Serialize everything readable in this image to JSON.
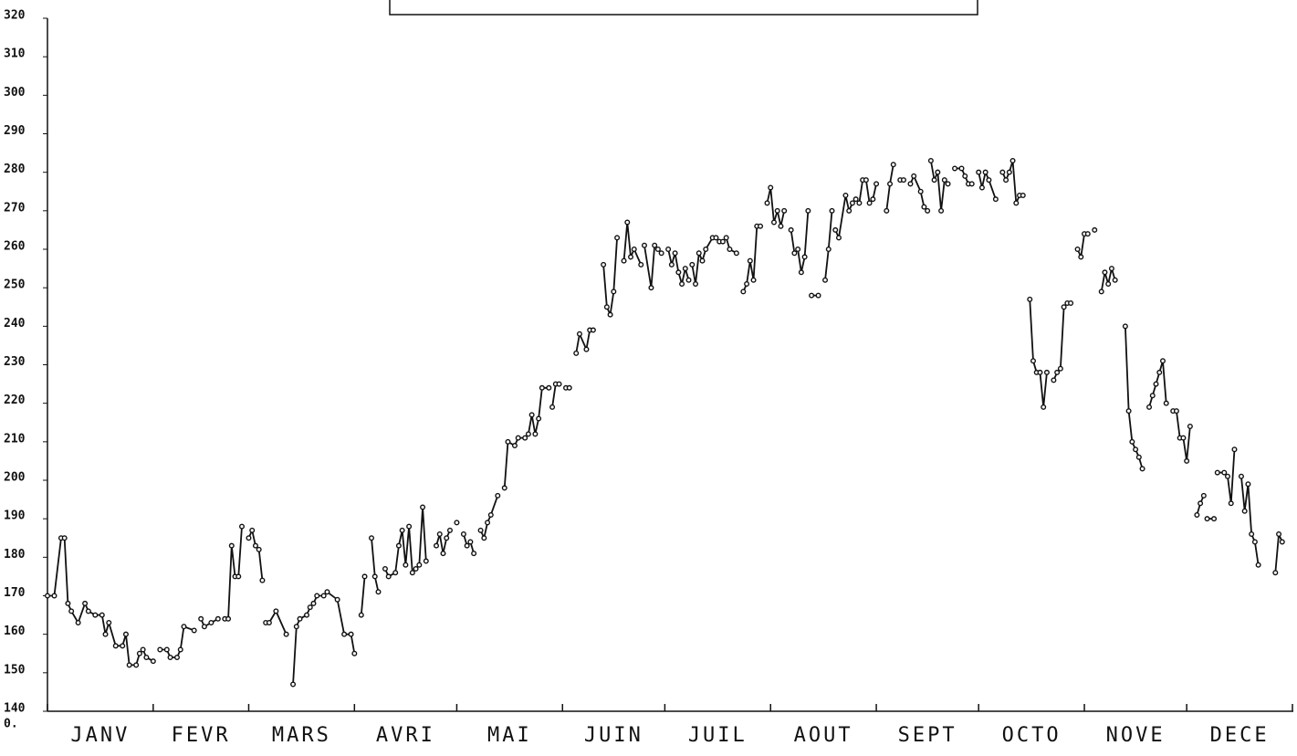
{
  "chart_data": {
    "type": "line",
    "categories": [
      "JANV",
      "FEVR",
      "MARS",
      "AVRI",
      "MAI",
      "JUIN",
      "JUIL",
      "AOUT",
      "SEPT",
      "OCTO",
      "NOVE",
      "DECE"
    ],
    "origin_label": "0.",
    "xlim": [
      0,
      365
    ],
    "xticks": [
      0,
      31,
      59,
      90,
      120,
      151,
      181,
      212,
      243,
      273,
      304,
      334,
      365
    ],
    "ylim": [
      140,
      320
    ],
    "yticks": [
      140,
      150,
      160,
      170,
      180,
      190,
      200,
      210,
      220,
      230,
      240,
      250,
      260,
      270,
      280,
      290,
      300,
      310,
      320
    ],
    "color": "#111111",
    "x": [
      0,
      2,
      4,
      5,
      6,
      7,
      9,
      11,
      12,
      14,
      16,
      17,
      18,
      20,
      22,
      23,
      24,
      26,
      27,
      28,
      29,
      31,
      null,
      33,
      35,
      36,
      38,
      39,
      40,
      43,
      null,
      45,
      46,
      48,
      50,
      null,
      52,
      53,
      54,
      55,
      56,
      57,
      null,
      59,
      60,
      61,
      62,
      63,
      null,
      64,
      65,
      67,
      70,
      null,
      72,
      73,
      74,
      76,
      77,
      null,
      78,
      79,
      81,
      82,
      85,
      87,
      89,
      90,
      null,
      92,
      93,
      null,
      95,
      96,
      97,
      null,
      99,
      100,
      102,
      103,
      104,
      105,
      106,
      107,
      108,
      109,
      110,
      111,
      null,
      114,
      115,
      116,
      117,
      118,
      null,
      120,
      null,
      122,
      123,
      124,
      125,
      null,
      127,
      128,
      129,
      130,
      132,
      null,
      134,
      135,
      137,
      138,
      140,
      141,
      142,
      143,
      144,
      145,
      147,
      null,
      148,
      149,
      150,
      null,
      152,
      153,
      null,
      155,
      156,
      158,
      159,
      160,
      null,
      163,
      164,
      165,
      166,
      167,
      null,
      169,
      170,
      171,
      172,
      174,
      null,
      175,
      177,
      178,
      179,
      180,
      null,
      182,
      183,
      184,
      185,
      186,
      187,
      188,
      null,
      189,
      190,
      191,
      192,
      193,
      195,
      196,
      null,
      197,
      198,
      199,
      200,
      202,
      null,
      204,
      205,
      206,
      207,
      208,
      209,
      null,
      211,
      212,
      213,
      214,
      215,
      216,
      null,
      218,
      219,
      220,
      221,
      222,
      223,
      null,
      224,
      226,
      null,
      228,
      229,
      230,
      null,
      231,
      232,
      234,
      235,
      236,
      237,
      null,
      238,
      239,
      240,
      241,
      242,
      243,
      null,
      246,
      247,
      248,
      null,
      250,
      251,
      null,
      253,
      254,
      256,
      257,
      258,
      null,
      259,
      260,
      261,
      262,
      263,
      264,
      null,
      266,
      268,
      269,
      270,
      271,
      null,
      273,
      274,
      275,
      276,
      278,
      null,
      280,
      281,
      282,
      283,
      284,
      285,
      286,
      null,
      288,
      289,
      290,
      291,
      292,
      293,
      null,
      295,
      296,
      297,
      298,
      299,
      300,
      null,
      302,
      303,
      304,
      305,
      null,
      307,
      null,
      309,
      310,
      311,
      312,
      313,
      null,
      316,
      317,
      318,
      319,
      320,
      321,
      null,
      323,
      324,
      325,
      326,
      327,
      328,
      null,
      330,
      331,
      332,
      333,
      334,
      335,
      null,
      337,
      338,
      339,
      null,
      340,
      342,
      null,
      343,
      345,
      346,
      347,
      348,
      null,
      350,
      351,
      352,
      353,
      354,
      355,
      null,
      360,
      361,
      362
    ],
    "values": [
      170,
      170,
      185,
      185,
      168,
      166,
      163,
      168,
      166,
      165,
      165,
      160,
      163,
      157,
      157,
      160,
      152,
      152,
      155,
      156,
      154,
      153,
      null,
      156,
      156,
      154,
      154,
      156,
      162,
      161,
      null,
      164,
      162,
      163,
      164,
      null,
      164,
      164,
      183,
      175,
      175,
      188,
      null,
      185,
      187,
      183,
      182,
      174,
      null,
      163,
      163,
      166,
      160,
      null,
      147,
      162,
      164,
      165,
      167,
      null,
      168,
      170,
      170,
      171,
      169,
      160,
      160,
      155,
      null,
      165,
      175,
      null,
      185,
      175,
      171,
      null,
      177,
      175,
      176,
      183,
      187,
      178,
      188,
      176,
      177,
      178,
      193,
      179,
      null,
      183,
      186,
      181,
      185,
      187,
      null,
      189,
      null,
      186,
      183,
      184,
      181,
      null,
      187,
      185,
      189,
      191,
      196,
      null,
      198,
      210,
      209,
      211,
      211,
      212,
      217,
      212,
      216,
      224,
      224,
      null,
      219,
      225,
      225,
      null,
      224,
      224,
      null,
      233,
      238,
      234,
      239,
      239,
      null,
      256,
      245,
      243,
      249,
      263,
      null,
      257,
      267,
      258,
      260,
      256,
      null,
      261,
      250,
      261,
      260,
      259,
      null,
      260,
      256,
      259,
      254,
      251,
      255,
      252,
      null,
      256,
      251,
      259,
      257,
      260,
      263,
      263,
      null,
      262,
      262,
      263,
      260,
      259,
      null,
      249,
      251,
      257,
      252,
      266,
      266,
      null,
      272,
      276,
      267,
      270,
      266,
      270,
      null,
      265,
      259,
      260,
      254,
      258,
      270,
      null,
      248,
      248,
      null,
      252,
      260,
      270,
      null,
      265,
      263,
      274,
      270,
      272,
      273,
      null,
      272,
      278,
      278,
      272,
      273,
      277,
      null,
      270,
      277,
      282,
      null,
      278,
      278,
      null,
      277,
      279,
      275,
      271,
      270,
      null,
      283,
      278,
      280,
      270,
      278,
      277,
      null,
      281,
      281,
      279,
      277,
      277,
      null,
      280,
      276,
      280,
      278,
      273,
      null,
      280,
      278,
      280,
      283,
      272,
      274,
      274,
      null,
      247,
      231,
      228,
      228,
      219,
      228,
      null,
      226,
      228,
      229,
      245,
      246,
      246,
      null,
      260,
      258,
      264,
      264,
      null,
      265,
      null,
      249,
      254,
      251,
      255,
      252,
      null,
      240,
      218,
      210,
      208,
      206,
      203,
      null,
      219,
      222,
      225,
      228,
      231,
      220,
      null,
      218,
      218,
      211,
      211,
      205,
      214,
      null,
      191,
      194,
      196,
      null,
      190,
      190,
      null,
      202,
      202,
      201,
      194,
      208,
      null,
      201,
      192,
      199,
      186,
      184,
      178,
      null,
      176,
      186,
      184
    ]
  }
}
